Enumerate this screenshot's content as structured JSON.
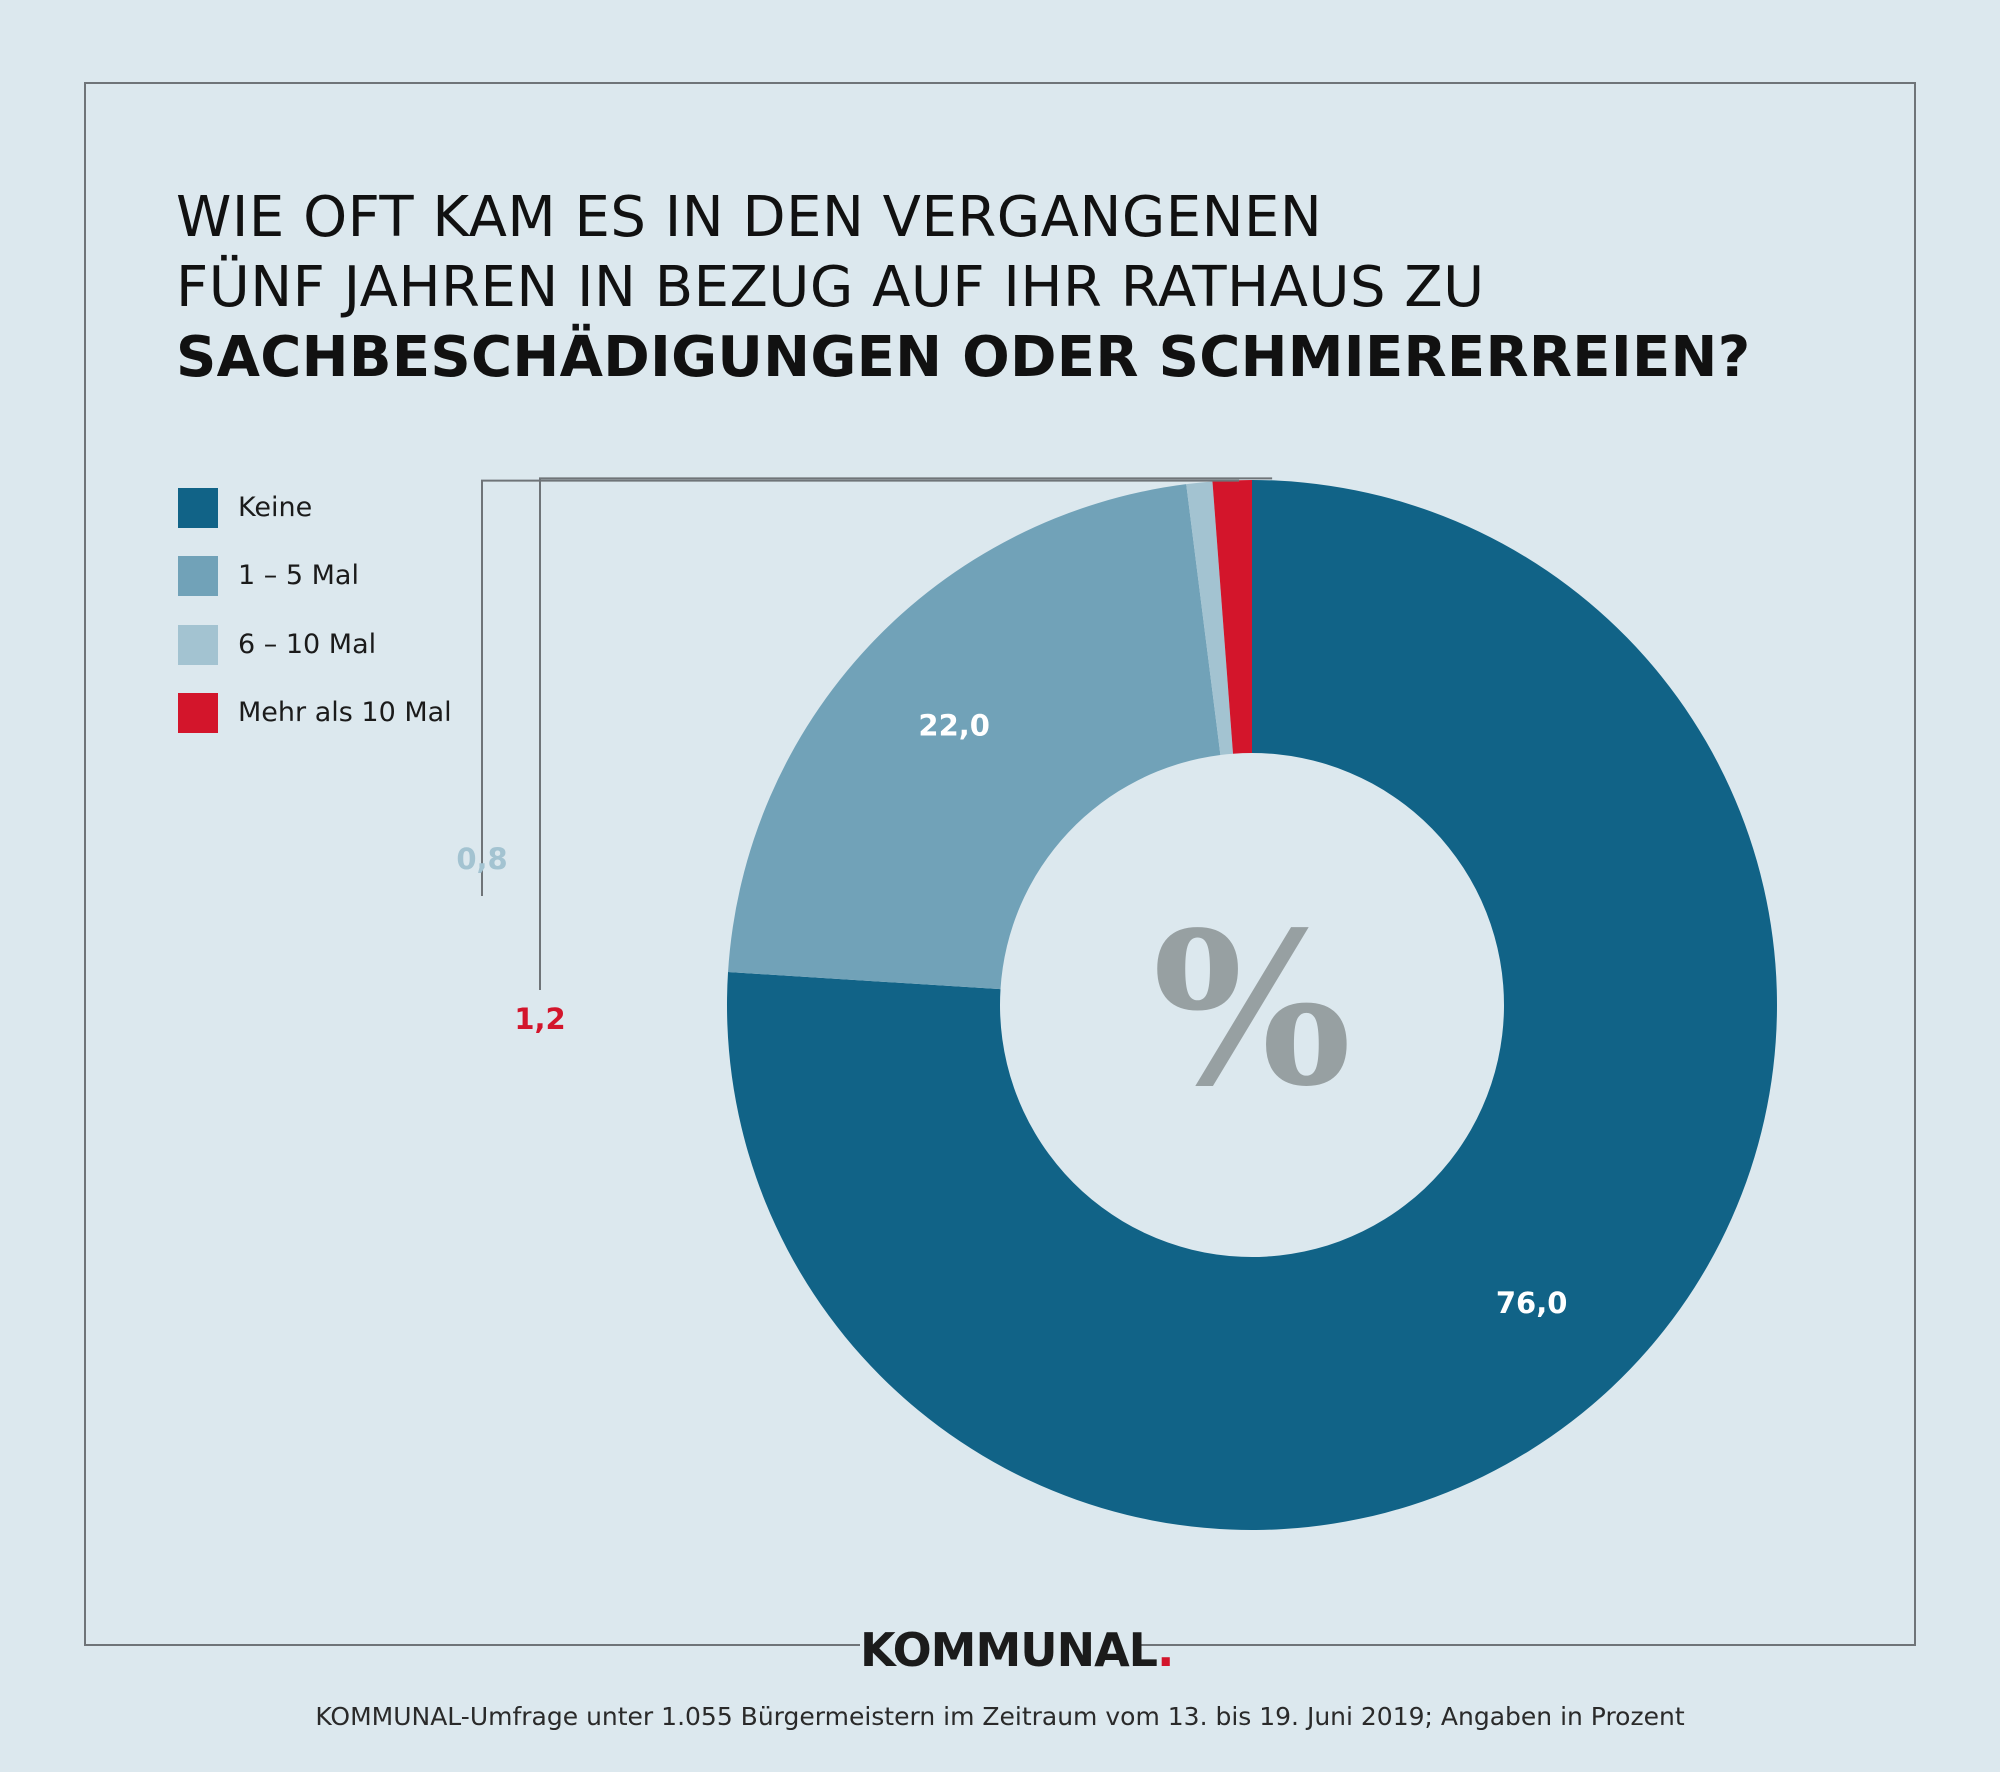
{
  "chart_data": {
    "type": "pie",
    "title_lines": [
      "WIE OFT KAM ES IN DEN VERGANGENEN",
      "FÜNF JAHREN IN BEZUG AUF IHR RATHAUS ZU",
      "SACHBESCHÄDIGUNGEN ODER SCHMIERERREIEN?"
    ],
    "categories": [
      "Keine",
      "1 – 5 Mal",
      "6 – 10 Mal",
      "Mehr als 10 Mal"
    ],
    "values": [
      76.0,
      22.0,
      0.8,
      1.2
    ],
    "data_labels": [
      "76,0",
      "22,0",
      "0,8",
      "1,2"
    ],
    "colors": [
      "#116387",
      "#71a2b8",
      "#a3c3d1",
      "#d3152b"
    ],
    "center_label": "%",
    "center_label_color": "#97a0a2",
    "legend_position": "top-left",
    "donut": true
  },
  "brand": {
    "name": "KOMMUNAL",
    "dot": ".",
    "accent_color": "#d3152b"
  },
  "footer": {
    "source": "KOMMUNAL-Umfrage unter 1.055 Bürgermeistern im Zeitraum vom 13. bis 19. Juni 2019; Angaben in Prozent"
  }
}
